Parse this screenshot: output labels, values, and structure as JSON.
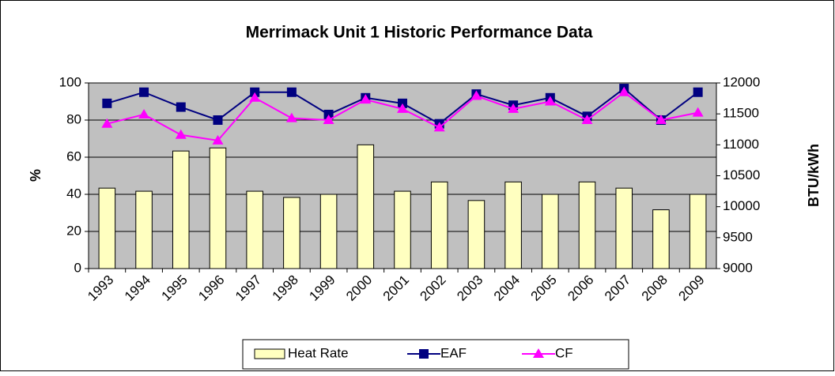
{
  "chart_data": {
    "type": "combo",
    "title": "Merrimack Unit 1 Historic Performance Data",
    "ylabel": "%",
    "y2label": "BTU/kWh",
    "categories": [
      "1993",
      "1994",
      "1995",
      "1996",
      "1997",
      "1998",
      "1999",
      "2000",
      "2001",
      "2002",
      "2003",
      "2004",
      "2005",
      "2006",
      "2007",
      "2008",
      "2009"
    ],
    "series": [
      {
        "name": "Heat Rate",
        "type": "bar",
        "axis": "y2",
        "color": "#ffffc0",
        "values": [
          10300,
          10250,
          10900,
          10950,
          10250,
          10150,
          10200,
          11000,
          10250,
          10400,
          10100,
          10400,
          10200,
          10400,
          10300,
          9950,
          10200
        ]
      },
      {
        "name": "EAF",
        "type": "line",
        "marker": "square",
        "color": "#000080",
        "values": [
          89,
          95,
          87,
          80,
          95,
          95,
          83,
          92,
          89,
          78,
          94,
          88,
          92,
          82,
          97,
          80,
          95
        ]
      },
      {
        "name": "CF",
        "type": "line",
        "marker": "triangle",
        "color": "#ff00ff",
        "values": [
          78,
          83,
          72,
          69,
          92,
          81,
          80,
          91,
          86,
          76,
          93,
          86,
          90,
          80,
          95,
          80,
          84
        ]
      }
    ],
    "ylim": [
      0,
      100
    ],
    "yticks": [
      0,
      20,
      40,
      60,
      80,
      100
    ],
    "y2lim": [
      9000,
      12000
    ],
    "y2ticks": [
      9000,
      9500,
      10000,
      10500,
      11000,
      11500,
      12000
    ],
    "grid": true,
    "plot_background": "#c0c0c0",
    "legend": "bottom"
  }
}
